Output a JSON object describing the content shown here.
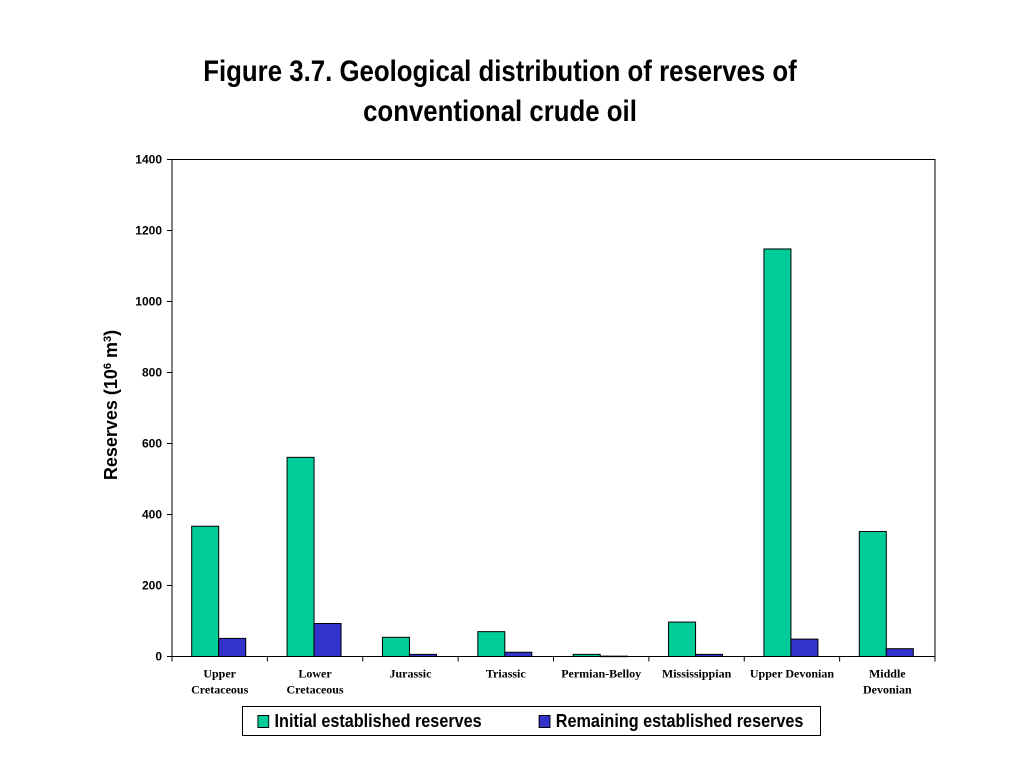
{
  "title": "Figure 3.7. Geological distribution of reserves of conventional crude oil",
  "colors": {
    "initial": "#00CC99",
    "remaining": "#3333CC",
    "outline": "#000000"
  },
  "chart_data": {
    "type": "bar",
    "title": "Figure 3.7. Geological distribution of reserves of conventional crude oil",
    "xlabel": "",
    "ylabel": "Reserves (10",
    "ylabel_sup1": "6",
    "ylabel_mid": " m",
    "ylabel_sup2": "3",
    "ylabel_end": ")",
    "ylim": [
      0,
      1400
    ],
    "yticks": [
      0,
      200,
      400,
      600,
      800,
      1000,
      1200,
      1400
    ],
    "grid": false,
    "legend_position": "bottom",
    "categories": [
      [
        "Upper",
        "Cretaceous"
      ],
      [
        "Lower",
        "Cretaceous"
      ],
      [
        "Jurassic"
      ],
      [
        "Triassic"
      ],
      [
        "Permian-Belloy"
      ],
      [
        "Mississippian"
      ],
      [
        "Upper Devonian"
      ],
      [
        "Middle",
        "Devonian"
      ]
    ],
    "series": [
      {
        "name": "Initial established reserves",
        "values": [
          367,
          561,
          54,
          70,
          6,
          97,
          1148,
          352
        ]
      },
      {
        "name": "Remaining established reserves",
        "values": [
          51,
          93,
          6,
          12,
          1,
          6,
          49,
          22
        ]
      }
    ]
  }
}
